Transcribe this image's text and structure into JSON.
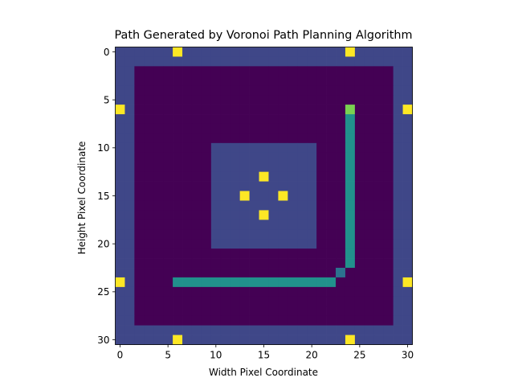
{
  "chart_data": {
    "type": "heatmap",
    "title": "Path Generated by Voronoi Path Planning Algorithm",
    "xlabel": "Width Pixel Coordinate",
    "ylabel": "Height Pixel Coordinate",
    "grid_width": 31,
    "grid_height": 31,
    "xlim": [
      -0.5,
      30.5
    ],
    "ylim": [
      30.5,
      -0.5
    ],
    "xticks": [
      0,
      5,
      10,
      15,
      20,
      25,
      30
    ],
    "yticks": [
      0,
      5,
      10,
      15,
      20,
      25,
      30
    ],
    "colormap": "viridis",
    "legend": "none",
    "grid": false,
    "colors": {
      "border_obstacle": "#3f4788",
      "free_space": "#440154",
      "inner_obstacle": "#3f4788",
      "voronoi_points": "#fde725",
      "path": "#21918c",
      "path_corner": "#2c728e",
      "goal": "#7ad151"
    },
    "regions": {
      "outer_border": {
        "x_range": [
          0,
          30
        ],
        "y_range": [
          0,
          30
        ],
        "thickness": 2
      },
      "inner_obstacle": {
        "x_range": [
          10,
          20
        ],
        "y_range": [
          10,
          20
        ]
      }
    },
    "voronoi_points": [
      [
        6,
        0
      ],
      [
        24,
        0
      ],
      [
        0,
        6
      ],
      [
        30,
        6
      ],
      [
        15,
        13
      ],
      [
        13,
        15
      ],
      [
        17,
        15
      ],
      [
        15,
        17
      ],
      [
        0,
        24
      ],
      [
        30,
        24
      ],
      [
        6,
        30
      ],
      [
        24,
        30
      ]
    ],
    "path": {
      "start": [
        6,
        24
      ],
      "goal": [
        24,
        6
      ],
      "cells": [
        [
          6,
          24
        ],
        [
          7,
          24
        ],
        [
          8,
          24
        ],
        [
          9,
          24
        ],
        [
          10,
          24
        ],
        [
          11,
          24
        ],
        [
          12,
          24
        ],
        [
          13,
          24
        ],
        [
          14,
          24
        ],
        [
          15,
          24
        ],
        [
          16,
          24
        ],
        [
          17,
          24
        ],
        [
          18,
          24
        ],
        [
          19,
          24
        ],
        [
          20,
          24
        ],
        [
          21,
          24
        ],
        [
          22,
          24
        ],
        [
          23,
          23
        ],
        [
          24,
          22
        ],
        [
          24,
          21
        ],
        [
          24,
          20
        ],
        [
          24,
          19
        ],
        [
          24,
          18
        ],
        [
          24,
          17
        ],
        [
          24,
          16
        ],
        [
          24,
          15
        ],
        [
          24,
          14
        ],
        [
          24,
          13
        ],
        [
          24,
          12
        ],
        [
          24,
          11
        ],
        [
          24,
          10
        ],
        [
          24,
          9
        ],
        [
          24,
          8
        ],
        [
          24,
          7
        ]
      ],
      "corner_cells": [
        [
          23,
          23
        ]
      ]
    }
  }
}
